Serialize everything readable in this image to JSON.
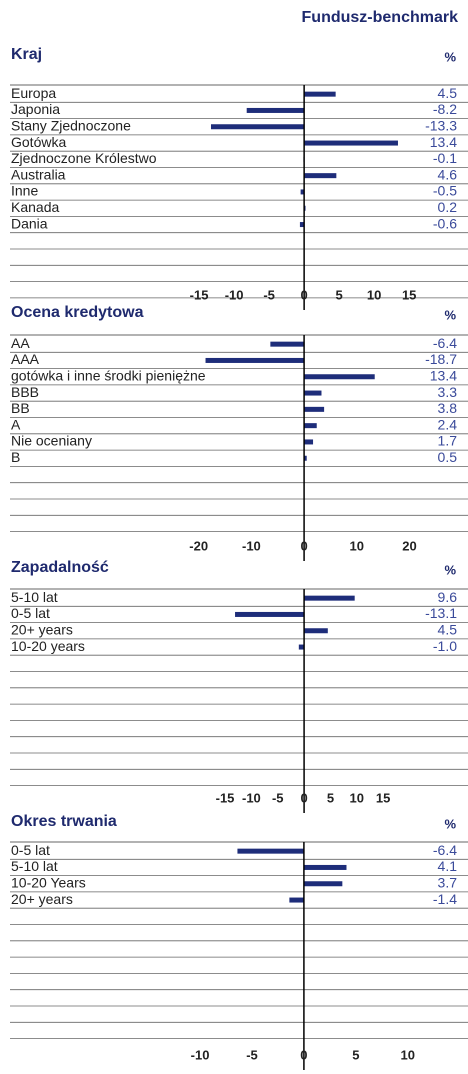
{
  "header": "Fundusz-benchmark",
  "chart_data": [
    {
      "type": "bar",
      "orientation": "horizontal",
      "title": "Kraj",
      "unit": "%",
      "color": "#1e2d7a",
      "categories": [
        "Europa",
        "Japonia",
        "Stany Zjednoczone",
        "Gotówka",
        "Zjednoczone Królestwo",
        "Australia",
        "Inne",
        "Kanada",
        "Dania"
      ],
      "values": [
        4.5,
        -8.2,
        -13.3,
        13.4,
        -0.1,
        4.6,
        -0.5,
        0.2,
        -0.6
      ],
      "value_labels": [
        "4.5",
        "-8.2",
        "-13.3",
        "13.4",
        "-0.1",
        "4.6",
        "-0.5",
        "0.2",
        "-0.6"
      ],
      "xlim": [
        -42,
        23.4
      ],
      "xticks": [
        -15,
        -10,
        -5,
        0,
        5,
        10,
        15
      ]
    },
    {
      "type": "bar",
      "orientation": "horizontal",
      "title": "Ocena kredytowa",
      "unit": "%",
      "color": "#1e2d7a",
      "categories": [
        "AA",
        "AAA",
        "gotówka i  inne środki pieniężne",
        "BBB",
        "BB",
        "A",
        "Nie oceniany",
        "B"
      ],
      "values": [
        -6.4,
        -18.7,
        13.4,
        3.3,
        3.8,
        2.4,
        1.7,
        0.5
      ],
      "value_labels": [
        "-6.4",
        "-18.7",
        "13.4",
        "3.3",
        "3.8",
        "2.4",
        "1.7",
        "0.5"
      ],
      "xlim": [
        -55.8,
        31.1
      ],
      "xticks": [
        -20,
        -10,
        0,
        10,
        20
      ]
    },
    {
      "type": "bar",
      "orientation": "horizontal",
      "title": "Zapadalność",
      "unit": "%",
      "color": "#1e2d7a",
      "categories": [
        "5-10 lat",
        "0-5 lat",
        "20+ years",
        "10-20 years"
      ],
      "values": [
        9.6,
        -13.1,
        4.5,
        -1.0
      ],
      "value_labels": [
        "9.6",
        "-13.1",
        "4.5",
        "-1.0"
      ],
      "xlim": [
        -55.8,
        31.1
      ],
      "xticks": [
        -15,
        -10,
        -5,
        0,
        5,
        10,
        15
      ]
    },
    {
      "type": "bar",
      "orientation": "horizontal",
      "title": "Okres trwania",
      "unit": "%",
      "color": "#1e2d7a",
      "categories": [
        "0-5 lat",
        "5-10 lat",
        "10-20 Years",
        "20+ years"
      ],
      "values": [
        -6.4,
        4.1,
        3.7,
        -1.4
      ],
      "value_labels": [
        "-6.4",
        "4.1",
        "3.7",
        "-1.4"
      ],
      "xlim": [
        -28.3,
        15.8
      ],
      "xticks": [
        -10,
        -5,
        0,
        5,
        10
      ]
    }
  ]
}
